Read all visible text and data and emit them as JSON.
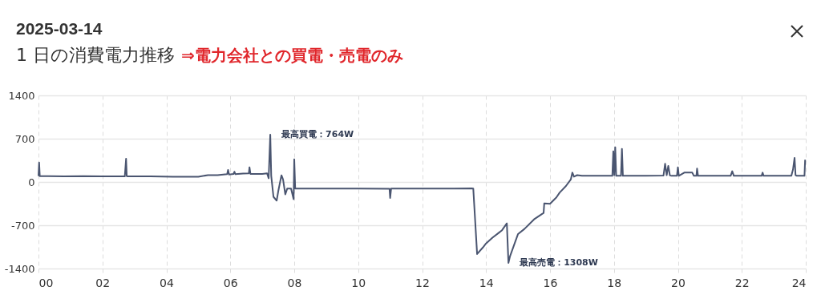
{
  "chart_data": {
    "type": "line",
    "title": "2025-03-14",
    "subtitle": "1 日の消費電力推移",
    "annotations": [
      "⇒電力会社との買電・売電のみ",
      {
        "text": "最高買電：764W",
        "x": 7.25,
        "y": 764
      },
      {
        "text": "最高売電：1308W",
        "x": 14.7,
        "y": -1308
      }
    ],
    "xlim": [
      0,
      24
    ],
    "ylim": [
      -1400,
      1400
    ],
    "xticks": [
      {
        "value": 0,
        "label": "00"
      },
      {
        "value": 2,
        "label": "02"
      },
      {
        "value": 4,
        "label": "04"
      },
      {
        "value": 6,
        "label": "06"
      },
      {
        "value": 8,
        "label": "08"
      },
      10,
      12,
      14,
      16,
      18,
      20,
      22,
      24
    ],
    "yticks": [
      -1400,
      -700,
      0,
      700,
      1400
    ],
    "grid": true,
    "x": [
      0,
      0.02,
      0.04,
      0.3,
      0.8,
      1.4,
      2.0,
      2.7,
      2.74,
      2.76,
      2.8,
      3.5,
      4.2,
      5.0,
      5.3,
      5.6,
      5.9,
      5.93,
      5.96,
      6.1,
      6.13,
      6.16,
      6.4,
      6.58,
      6.6,
      6.63,
      6.8,
      7.0,
      7.15,
      7.2,
      7.25,
      7.28,
      7.35,
      7.45,
      7.5,
      7.6,
      7.65,
      7.72,
      7.78,
      7.9,
      7.98,
      8.0,
      8.03,
      8.06,
      9.0,
      10.0,
      10.98,
      11.0,
      11.03,
      12.0,
      13.0,
      13.55,
      13.6,
      13.72,
      13.9,
      14.0,
      14.2,
      14.4,
      14.5,
      14.65,
      14.7,
      14.75,
      15.0,
      15.2,
      15.5,
      15.8,
      15.82,
      16.0,
      16.2,
      16.3,
      16.5,
      16.65,
      16.7,
      16.75,
      16.85,
      17.0,
      17.5,
      17.95,
      17.98,
      18.01,
      18.04,
      18.07,
      18.1,
      18.22,
      18.25,
      18.28,
      18.5,
      19.0,
      19.55,
      19.6,
      19.65,
      19.7,
      19.75,
      19.8,
      19.97,
      20.0,
      20.03,
      20.2,
      20.45,
      20.5,
      20.58,
      20.6,
      20.63,
      21.0,
      21.65,
      21.7,
      21.75,
      22.0,
      22.62,
      22.65,
      22.68,
      23.0,
      23.55,
      23.6,
      23.65,
      23.68,
      23.72,
      23.9,
      23.96,
      23.98
    ],
    "values": [
      95,
      315,
      95,
      95,
      90,
      95,
      90,
      90,
      376,
      95,
      90,
      90,
      85,
      85,
      110,
      110,
      125,
      195,
      120,
      130,
      165,
      125,
      135,
      140,
      238,
      130,
      130,
      130,
      140,
      60,
      764,
      100,
      -240,
      -302,
      -150,
      108,
      40,
      -200,
      -108,
      -108,
      -280,
      367,
      -108,
      -108,
      -108,
      -108,
      -110,
      -259,
      -108,
      -108,
      -108,
      -105,
      -108,
      -1166,
      -1060,
      -994,
      -900,
      -821,
      -780,
      -670,
      -1308,
      -1200,
      -842,
      -760,
      -605,
      -500,
      -346,
      -354,
      -250,
      -173,
      -65,
      40,
      151,
      86,
      110,
      99,
      99,
      99,
      497,
      110,
      562,
      99,
      99,
      99,
      536,
      99,
      99,
      99,
      105,
      294,
      110,
      260,
      105,
      99,
      99,
      238,
      99,
      151,
      151,
      99,
      99,
      216,
      99,
      99,
      99,
      173,
      99,
      99,
      99,
      151,
      99,
      99,
      99,
      200,
      389,
      110,
      99,
      99,
      99,
      359
    ]
  }
}
